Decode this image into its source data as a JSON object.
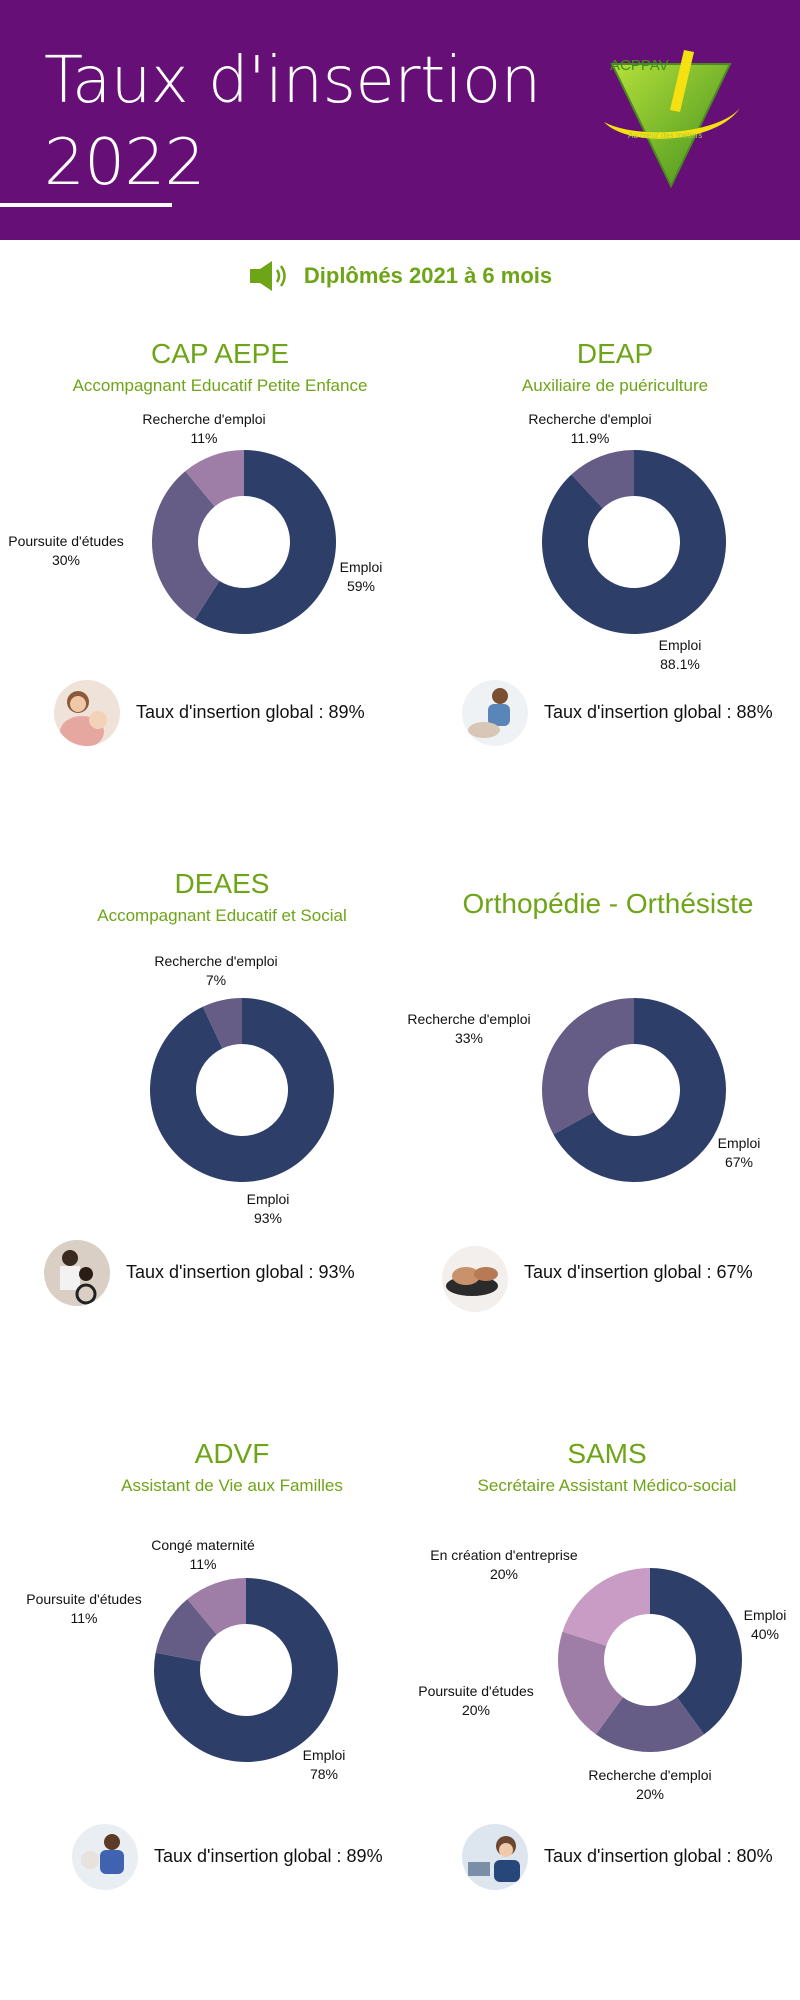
{
  "header": {
    "title_line1": "Taux d'insertion",
    "title_line2": "2022",
    "background": "#661077",
    "logo": {
      "icon": "acppav-logo",
      "text": "ACPPAV",
      "tagline": "Au cœur des métiers"
    }
  },
  "subheading": {
    "icon": "speaker-icon",
    "text": "Diplômés 2021 à 6 mois"
  },
  "colors": {
    "accent": "#6ea417",
    "emploi": "#2d3f69",
    "slice2": "#655d86",
    "slice3": "#9e7ea7",
    "slice4": "#c89cc4"
  },
  "sections": [
    {
      "title": "CAP AEPE",
      "subtitle": "Accompagnant Educatif Petite Enfance",
      "global_text": "Taux d'insertion global : 89%",
      "avatar_icon": "mother-baby-photo",
      "chart_data": {
        "type": "pie",
        "slices": [
          {
            "label": "Emploi",
            "value": 59,
            "display": "59%",
            "color": "#2d3f69"
          },
          {
            "label": "Poursuite d'études",
            "value": 30,
            "display": "30%",
            "color": "#655d86"
          },
          {
            "label": "Recherche d'emploi",
            "value": 11,
            "display": "11%",
            "color": "#9e7ea7"
          }
        ]
      }
    },
    {
      "title": "DEAP",
      "subtitle": "Auxiliaire de puériculture",
      "global_text": "Taux d'insertion global : 88%",
      "avatar_icon": "nurse-baby-photo",
      "chart_data": {
        "type": "pie",
        "slices": [
          {
            "label": "Emploi",
            "value": 88.1,
            "display": "88.1%",
            "color": "#2d3f69"
          },
          {
            "label": "Recherche d'emploi",
            "value": 11.9,
            "display": "11.9%",
            "color": "#655d86"
          }
        ]
      }
    },
    {
      "title": "DEAES",
      "subtitle": "Accompagnant Educatif et Social",
      "global_text": "Taux d'insertion global : 93%",
      "avatar_icon": "caregiver-wheelchair-photo",
      "chart_data": {
        "type": "pie",
        "slices": [
          {
            "label": "Emploi",
            "value": 93,
            "display": "93%",
            "color": "#2d3f69"
          },
          {
            "label": "Recherche d'emploi",
            "value": 7,
            "display": "7%",
            "color": "#655d86"
          }
        ]
      }
    },
    {
      "title": "Orthopédie - Orthésiste",
      "subtitle": "",
      "global_text": "Taux d'insertion global : 67%",
      "avatar_icon": "orthosis-hand-photo",
      "chart_data": {
        "type": "pie",
        "slices": [
          {
            "label": "Emploi",
            "value": 67,
            "display": "67%",
            "color": "#2d3f69"
          },
          {
            "label": "Recherche d'emploi",
            "value": 33,
            "display": "33%",
            "color": "#655d86"
          }
        ]
      }
    },
    {
      "title": "ADVF",
      "subtitle": "Assistant de Vie aux Familles",
      "global_text": "Taux d'insertion global : 89%",
      "avatar_icon": "home-care-photo",
      "chart_data": {
        "type": "pie",
        "slices": [
          {
            "label": "Emploi",
            "value": 78,
            "display": "78%",
            "color": "#2d3f69"
          },
          {
            "label": "Poursuite d'études",
            "value": 11,
            "display": "11%",
            "color": "#655d86"
          },
          {
            "label": "Congé maternité",
            "value": 11,
            "display": "11%",
            "color": "#9e7ea7"
          }
        ]
      }
    },
    {
      "title": "SAMS",
      "subtitle": "Secrétaire Assistant Médico-social",
      "global_text": "Taux d'insertion global : 80%",
      "avatar_icon": "secretary-photo",
      "chart_data": {
        "type": "pie",
        "slices": [
          {
            "label": "Emploi",
            "value": 40,
            "display": "40%",
            "color": "#2d3f69"
          },
          {
            "label": "Recherche d'emploi",
            "value": 20,
            "display": "20%",
            "color": "#655d86"
          },
          {
            "label": "Poursuite d'études",
            "value": 20,
            "display": "20%",
            "color": "#9e7ea7"
          },
          {
            "label": "En création d'entreprise",
            "value": 20,
            "display": "20%",
            "color": "#c89cc4"
          }
        ]
      }
    }
  ]
}
